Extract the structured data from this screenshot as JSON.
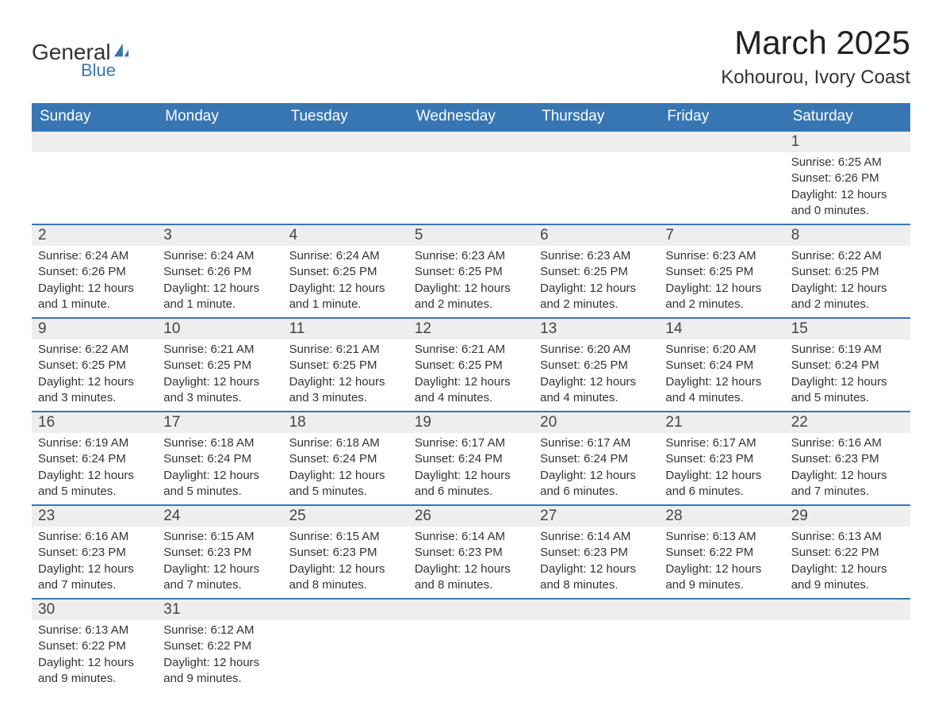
{
  "logo": {
    "general": "General",
    "blue": "Blue",
    "icon_color": "#3876b3"
  },
  "header": {
    "title": "March 2025",
    "location": "Kohourou, Ivory Coast"
  },
  "table": {
    "header_bg": "#3876b3",
    "header_text_color": "#ffffff",
    "day_num_bg": "#eeeeee",
    "border_color": "#3876b3",
    "text_color": "#333333",
    "background_color": "#ffffff"
  },
  "weekdays": [
    "Sunday",
    "Monday",
    "Tuesday",
    "Wednesday",
    "Thursday",
    "Friday",
    "Saturday"
  ],
  "days": {
    "1": {
      "sunrise": "6:25 AM",
      "sunset": "6:26 PM",
      "daylight": "12 hours and 0 minutes."
    },
    "2": {
      "sunrise": "6:24 AM",
      "sunset": "6:26 PM",
      "daylight": "12 hours and 1 minute."
    },
    "3": {
      "sunrise": "6:24 AM",
      "sunset": "6:26 PM",
      "daylight": "12 hours and 1 minute."
    },
    "4": {
      "sunrise": "6:24 AM",
      "sunset": "6:25 PM",
      "daylight": "12 hours and 1 minute."
    },
    "5": {
      "sunrise": "6:23 AM",
      "sunset": "6:25 PM",
      "daylight": "12 hours and 2 minutes."
    },
    "6": {
      "sunrise": "6:23 AM",
      "sunset": "6:25 PM",
      "daylight": "12 hours and 2 minutes."
    },
    "7": {
      "sunrise": "6:23 AM",
      "sunset": "6:25 PM",
      "daylight": "12 hours and 2 minutes."
    },
    "8": {
      "sunrise": "6:22 AM",
      "sunset": "6:25 PM",
      "daylight": "12 hours and 2 minutes."
    },
    "9": {
      "sunrise": "6:22 AM",
      "sunset": "6:25 PM",
      "daylight": "12 hours and 3 minutes."
    },
    "10": {
      "sunrise": "6:21 AM",
      "sunset": "6:25 PM",
      "daylight": "12 hours and 3 minutes."
    },
    "11": {
      "sunrise": "6:21 AM",
      "sunset": "6:25 PM",
      "daylight": "12 hours and 3 minutes."
    },
    "12": {
      "sunrise": "6:21 AM",
      "sunset": "6:25 PM",
      "daylight": "12 hours and 4 minutes."
    },
    "13": {
      "sunrise": "6:20 AM",
      "sunset": "6:25 PM",
      "daylight": "12 hours and 4 minutes."
    },
    "14": {
      "sunrise": "6:20 AM",
      "sunset": "6:24 PM",
      "daylight": "12 hours and 4 minutes."
    },
    "15": {
      "sunrise": "6:19 AM",
      "sunset": "6:24 PM",
      "daylight": "12 hours and 5 minutes."
    },
    "16": {
      "sunrise": "6:19 AM",
      "sunset": "6:24 PM",
      "daylight": "12 hours and 5 minutes."
    },
    "17": {
      "sunrise": "6:18 AM",
      "sunset": "6:24 PM",
      "daylight": "12 hours and 5 minutes."
    },
    "18": {
      "sunrise": "6:18 AM",
      "sunset": "6:24 PM",
      "daylight": "12 hours and 5 minutes."
    },
    "19": {
      "sunrise": "6:17 AM",
      "sunset": "6:24 PM",
      "daylight": "12 hours and 6 minutes."
    },
    "20": {
      "sunrise": "6:17 AM",
      "sunset": "6:24 PM",
      "daylight": "12 hours and 6 minutes."
    },
    "21": {
      "sunrise": "6:17 AM",
      "sunset": "6:23 PM",
      "daylight": "12 hours and 6 minutes."
    },
    "22": {
      "sunrise": "6:16 AM",
      "sunset": "6:23 PM",
      "daylight": "12 hours and 7 minutes."
    },
    "23": {
      "sunrise": "6:16 AM",
      "sunset": "6:23 PM",
      "daylight": "12 hours and 7 minutes."
    },
    "24": {
      "sunrise": "6:15 AM",
      "sunset": "6:23 PM",
      "daylight": "12 hours and 7 minutes."
    },
    "25": {
      "sunrise": "6:15 AM",
      "sunset": "6:23 PM",
      "daylight": "12 hours and 8 minutes."
    },
    "26": {
      "sunrise": "6:14 AM",
      "sunset": "6:23 PM",
      "daylight": "12 hours and 8 minutes."
    },
    "27": {
      "sunrise": "6:14 AM",
      "sunset": "6:23 PM",
      "daylight": "12 hours and 8 minutes."
    },
    "28": {
      "sunrise": "6:13 AM",
      "sunset": "6:22 PM",
      "daylight": "12 hours and 9 minutes."
    },
    "29": {
      "sunrise": "6:13 AM",
      "sunset": "6:22 PM",
      "daylight": "12 hours and 9 minutes."
    },
    "30": {
      "sunrise": "6:13 AM",
      "sunset": "6:22 PM",
      "daylight": "12 hours and 9 minutes."
    },
    "31": {
      "sunrise": "6:12 AM",
      "sunset": "6:22 PM",
      "daylight": "12 hours and 9 minutes."
    }
  },
  "labels": {
    "sunrise": "Sunrise: ",
    "sunset": "Sunset: ",
    "daylight": "Daylight: "
  },
  "grid": [
    [
      null,
      null,
      null,
      null,
      null,
      null,
      "1"
    ],
    [
      "2",
      "3",
      "4",
      "5",
      "6",
      "7",
      "8"
    ],
    [
      "9",
      "10",
      "11",
      "12",
      "13",
      "14",
      "15"
    ],
    [
      "16",
      "17",
      "18",
      "19",
      "20",
      "21",
      "22"
    ],
    [
      "23",
      "24",
      "25",
      "26",
      "27",
      "28",
      "29"
    ],
    [
      "30",
      "31",
      null,
      null,
      null,
      null,
      null
    ]
  ]
}
